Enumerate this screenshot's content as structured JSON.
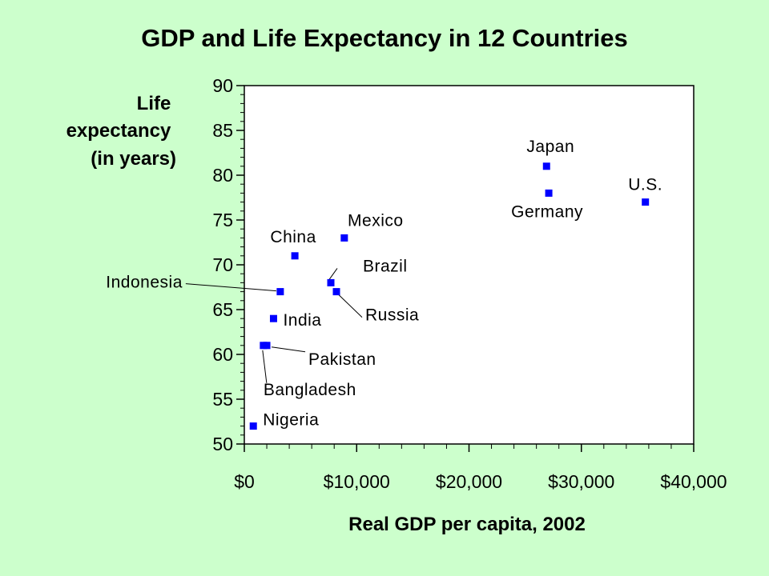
{
  "chart_data": {
    "type": "scatter",
    "title": "GDP and Life Expectancy in 12 Countries",
    "xlabel": "Real GDP per capita, 2002",
    "ylabel": [
      "Life",
      "expectancy",
      "(in years)"
    ],
    "xlim": [
      0,
      40000
    ],
    "ylim": [
      50,
      90
    ],
    "x_ticks": [
      {
        "value": 0,
        "label": "$0"
      },
      {
        "value": 10000,
        "label": "$10,000"
      },
      {
        "value": 20000,
        "label": "$20,000"
      },
      {
        "value": 30000,
        "label": "$30,000"
      },
      {
        "value": 40000,
        "label": "$40,000"
      }
    ],
    "y_ticks": [
      {
        "value": 50,
        "label": "50"
      },
      {
        "value": 55,
        "label": "55"
      },
      {
        "value": 60,
        "label": "60"
      },
      {
        "value": 65,
        "label": "65"
      },
      {
        "value": 70,
        "label": "70"
      },
      {
        "value": 75,
        "label": "75"
      },
      {
        "value": 80,
        "label": "80"
      },
      {
        "value": 85,
        "label": "85"
      },
      {
        "value": 90,
        "label": "90"
      }
    ],
    "grid": false,
    "marker_color": "#0000ff",
    "points": [
      {
        "label": "Japan",
        "x": 26900,
        "y": 81
      },
      {
        "label": "Germany",
        "x": 27100,
        "y": 78
      },
      {
        "label": "U.S.",
        "x": 35700,
        "y": 77
      },
      {
        "label": "Mexico",
        "x": 8900,
        "y": 73
      },
      {
        "label": "China",
        "x": 4500,
        "y": 71
      },
      {
        "label": "Brazil",
        "x": 7700,
        "y": 68
      },
      {
        "label": "Russia",
        "x": 8200,
        "y": 67
      },
      {
        "label": "Indonesia",
        "x": 3200,
        "y": 67
      },
      {
        "label": "India",
        "x": 2600,
        "y": 64
      },
      {
        "label": "Pakistan",
        "x": 2000,
        "y": 61
      },
      {
        "label": "Bangladesh",
        "x": 1700,
        "y": 61
      },
      {
        "label": "Nigeria",
        "x": 800,
        "y": 52
      }
    ]
  }
}
